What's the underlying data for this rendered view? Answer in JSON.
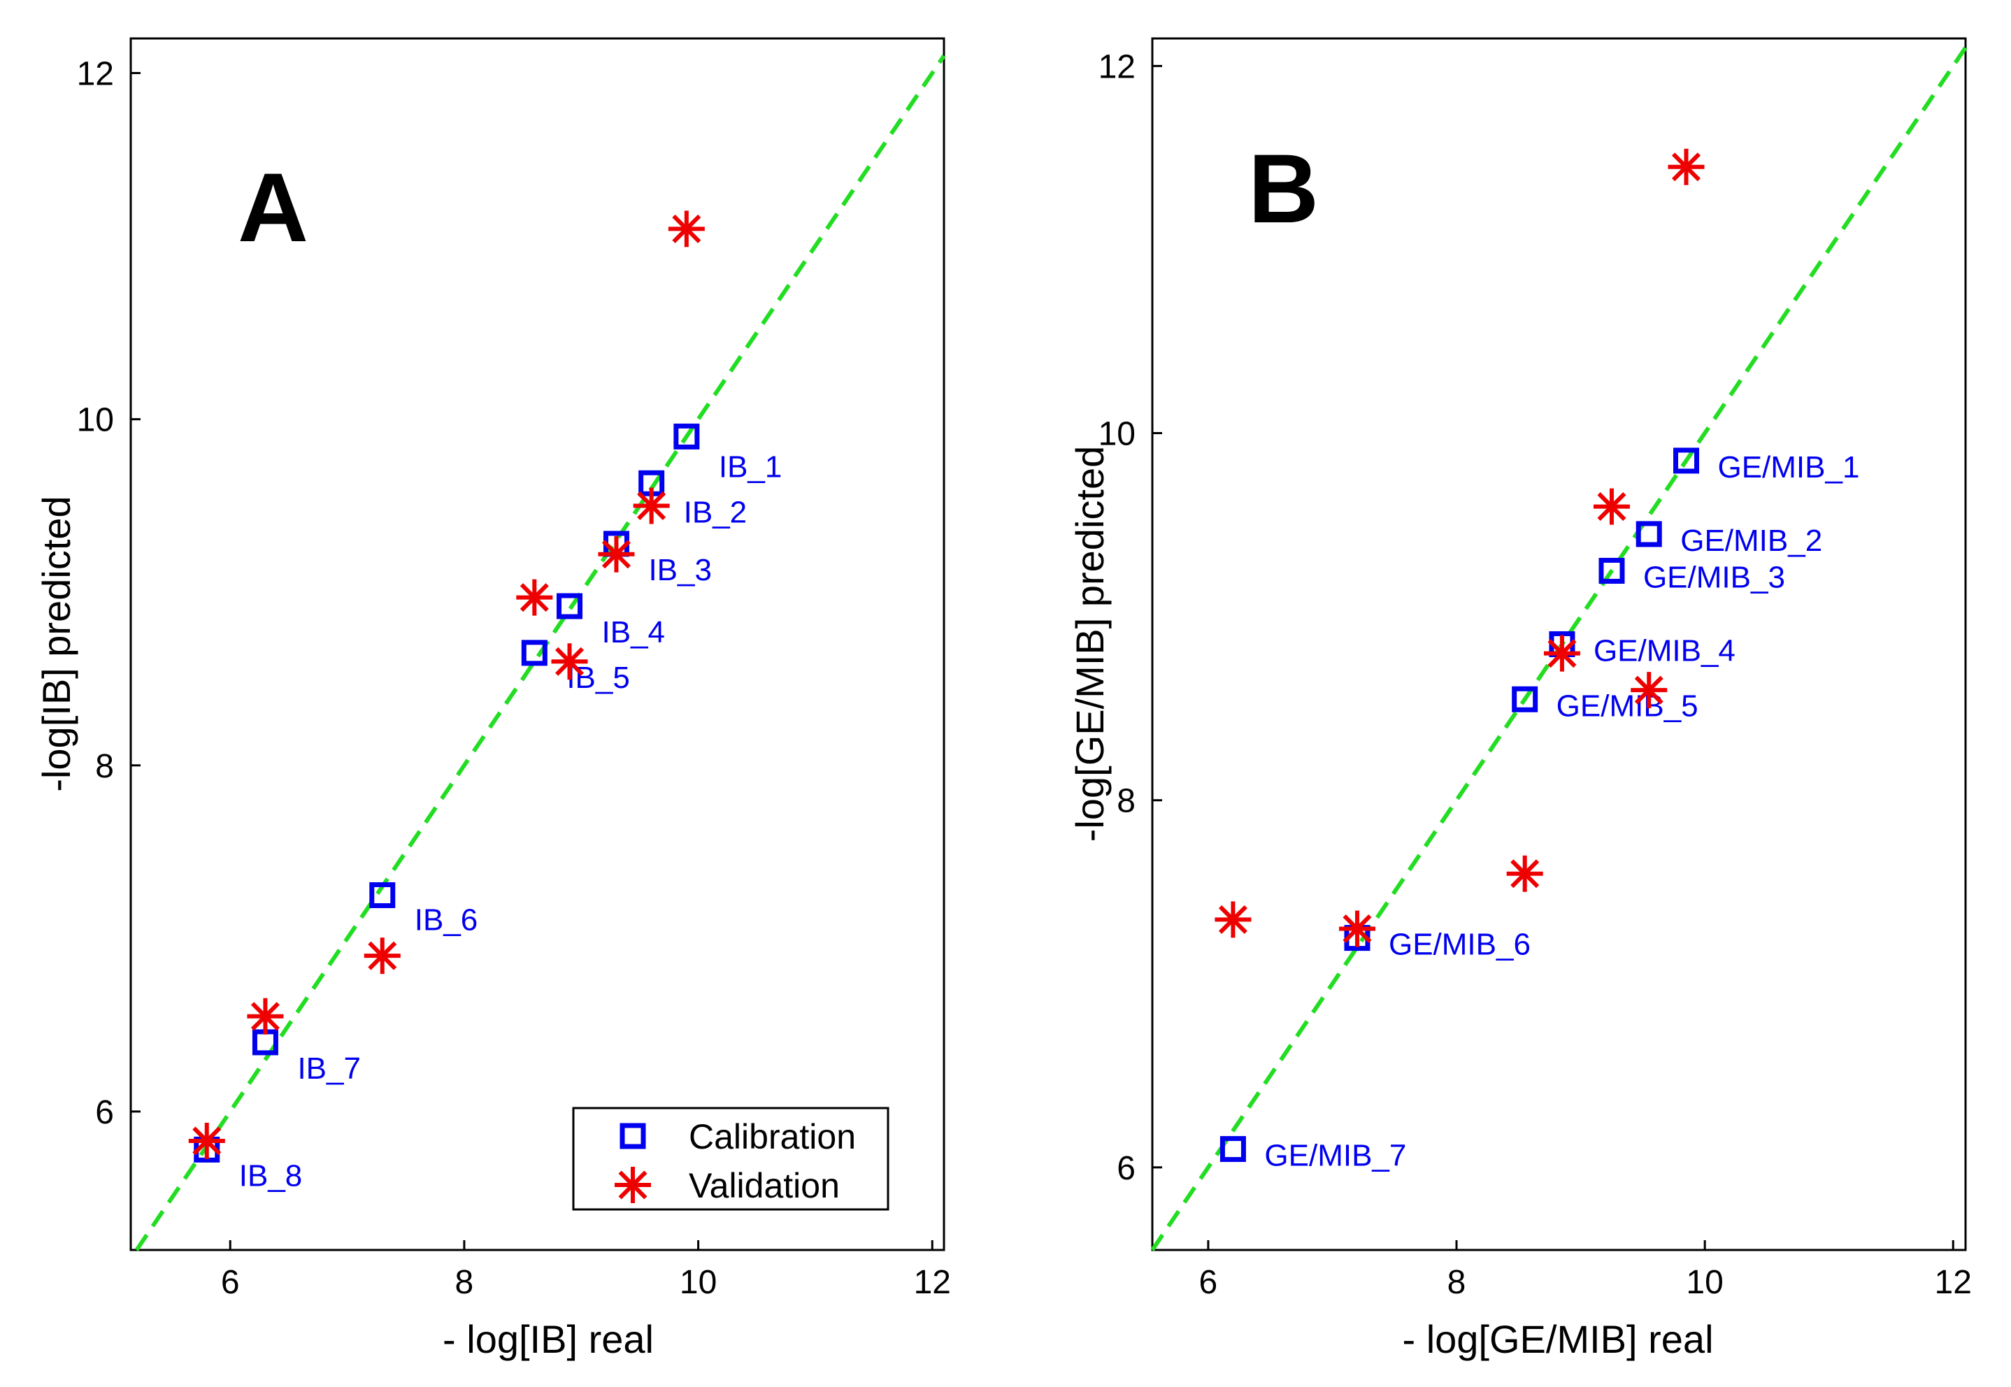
{
  "chart_data": [
    {
      "type": "scatter",
      "panel_label": "A",
      "xlabel": "- log[IB] real",
      "ylabel": "-log[IB] predicted",
      "xlim": [
        5.15,
        12.1
      ],
      "ylim": [
        5.2,
        12.2
      ],
      "xticks": [
        "6",
        "8",
        "10",
        "12"
      ],
      "yticks": [
        "6",
        "8",
        "10",
        "12"
      ],
      "identity_line": {
        "color": "#22dd22",
        "style": "dashed"
      },
      "legend": {
        "position": "bottom-right",
        "entries": [
          "Calibration",
          "Validation"
        ]
      },
      "series": [
        {
          "name": "Calibration",
          "marker": "square",
          "color": "#0000ee",
          "points": [
            {
              "x": 9.9,
              "y": 9.9,
              "label": "IB_1"
            },
            {
              "x": 9.6,
              "y": 9.63,
              "label": "IB_2"
            },
            {
              "x": 9.3,
              "y": 9.28,
              "label": "IB_3"
            },
            {
              "x": 8.9,
              "y": 8.92,
              "label": "IB_4"
            },
            {
              "x": 8.6,
              "y": 8.65,
              "label": "IB_5"
            },
            {
              "x": 7.3,
              "y": 7.25,
              "label": "IB_6"
            },
            {
              "x": 6.3,
              "y": 6.4,
              "label": "IB_7"
            },
            {
              "x": 5.8,
              "y": 5.78,
              "label": "IB_8"
            }
          ]
        },
        {
          "name": "Validation",
          "marker": "asterisk",
          "color": "#ee0000",
          "points": [
            {
              "x": 9.9,
              "y": 11.1
            },
            {
              "x": 9.6,
              "y": 9.5
            },
            {
              "x": 9.3,
              "y": 9.22
            },
            {
              "x": 8.6,
              "y": 8.97
            },
            {
              "x": 8.9,
              "y": 8.6
            },
            {
              "x": 7.3,
              "y": 6.9
            },
            {
              "x": 6.3,
              "y": 6.55
            },
            {
              "x": 5.8,
              "y": 5.83
            }
          ]
        }
      ]
    },
    {
      "type": "scatter",
      "panel_label": "B",
      "xlabel": "- log[GE/MIB] real",
      "ylabel": "-log[GE/MIB] predicted",
      "xlim": [
        5.55,
        12.1
      ],
      "ylim": [
        5.55,
        12.15
      ],
      "xticks": [
        "6",
        "8",
        "10",
        "12"
      ],
      "yticks": [
        "6",
        "8",
        "10",
        "12"
      ],
      "identity_line": {
        "color": "#22dd22",
        "style": "dashed"
      },
      "series": [
        {
          "name": "Calibration",
          "marker": "square",
          "color": "#0000ee",
          "points": [
            {
              "x": 9.85,
              "y": 9.85,
              "label": "GE/MIB_1"
            },
            {
              "x": 9.55,
              "y": 9.45,
              "label": "GE/MIB_2"
            },
            {
              "x": 9.25,
              "y": 9.25,
              "label": "GE/MIB_3"
            },
            {
              "x": 8.85,
              "y": 8.85,
              "label": "GE/MIB_4"
            },
            {
              "x": 8.55,
              "y": 8.55,
              "label": "GE/MIB_5"
            },
            {
              "x": 7.2,
              "y": 7.25,
              "label": "GE/MIB_6"
            },
            {
              "x": 6.2,
              "y": 6.1,
              "label": "GE/MIB_7"
            }
          ]
        },
        {
          "name": "Validation",
          "marker": "asterisk",
          "color": "#ee0000",
          "points": [
            {
              "x": 9.85,
              "y": 11.45
            },
            {
              "x": 9.25,
              "y": 9.6
            },
            {
              "x": 8.85,
              "y": 8.8
            },
            {
              "x": 9.55,
              "y": 8.6
            },
            {
              "x": 8.55,
              "y": 7.6
            },
            {
              "x": 7.2,
              "y": 7.3
            },
            {
              "x": 6.2,
              "y": 7.35
            }
          ]
        }
      ]
    }
  ]
}
